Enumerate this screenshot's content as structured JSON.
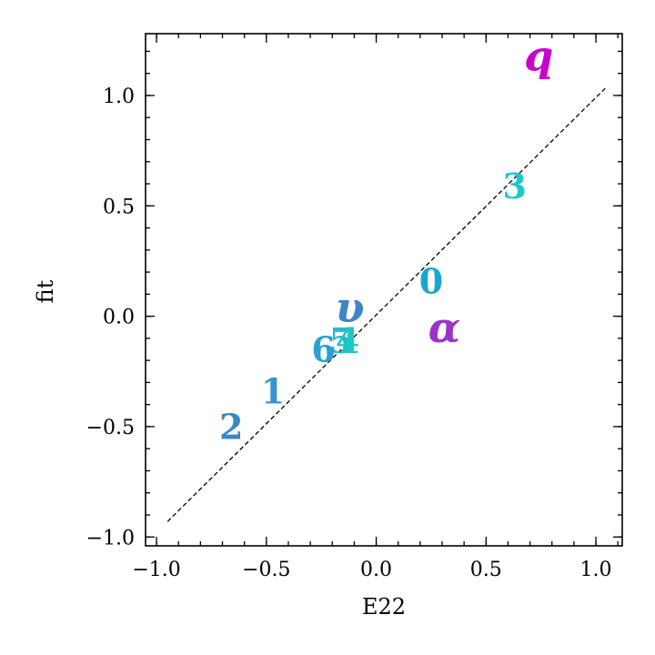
{
  "chart_data": {
    "type": "scatter",
    "title": "",
    "xlabel": "E22",
    "ylabel": "fit",
    "xlim": [
      -1.05,
      1.12
    ],
    "ylim": [
      -1.04,
      1.28
    ],
    "xticks": [
      -1.0,
      -0.5,
      0.0,
      0.5,
      1.0
    ],
    "xtick_labels": [
      "−1.0",
      "−0.5",
      "0.0",
      "0.5",
      "1.0"
    ],
    "yticks": [
      -1.0,
      -0.5,
      0.0,
      0.5,
      1.0
    ],
    "ytick_labels": [
      "−1.0",
      "−0.5",
      "0.0",
      "0.5",
      "1.0"
    ],
    "grid": false,
    "reference_line": {
      "style": "dashed",
      "color": "#000000",
      "from": [
        -0.95,
        -0.93
      ],
      "to": [
        1.05,
        1.04
      ]
    },
    "points": [
      {
        "label": "q",
        "x": 0.74,
        "y": 1.18,
        "color": "#cc00cc",
        "italic": true
      },
      {
        "label": "3",
        "x": 0.63,
        "y": 0.59,
        "color": "#1ec8c8",
        "italic": false
      },
      {
        "label": "0",
        "x": 0.25,
        "y": 0.16,
        "color": "#1aa6d2",
        "italic": false
      },
      {
        "label": "υ",
        "x": -0.12,
        "y": 0.04,
        "color": "#3d86c6",
        "italic": true
      },
      {
        "label": "α",
        "x": 0.31,
        "y": -0.05,
        "color": "#9933cc",
        "italic": true
      },
      {
        "label": "5",
        "x": -0.16,
        "y": -0.11,
        "color": "#20bcc9",
        "italic": false
      },
      {
        "label": "4",
        "x": -0.13,
        "y": -0.11,
        "color": "#1ec8c8",
        "italic": false
      },
      {
        "label": "6",
        "x": -0.24,
        "y": -0.15,
        "color": "#2b9fd0",
        "italic": false
      },
      {
        "label": "1",
        "x": -0.47,
        "y": -0.34,
        "color": "#3a92d0",
        "italic": false
      },
      {
        "label": "2",
        "x": -0.66,
        "y": -0.5,
        "color": "#3d86c6",
        "italic": false
      }
    ]
  }
}
